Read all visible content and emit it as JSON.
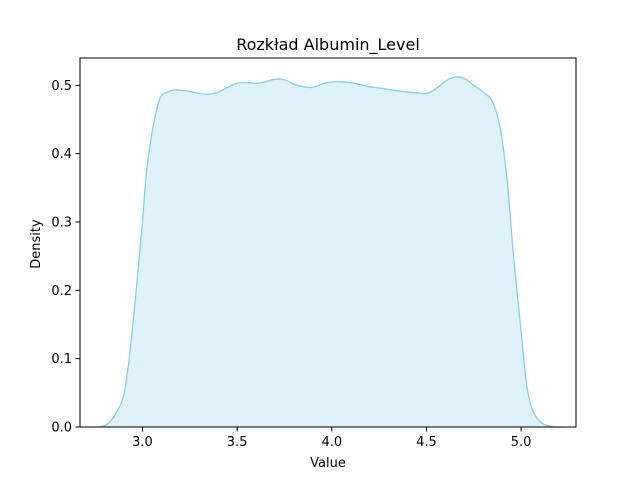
{
  "chart_data": {
    "type": "area",
    "title": "Rozkład Albumin_Level",
    "xlabel": "Value",
    "ylabel": "Density",
    "xlim": [
      2.67,
      5.29
    ],
    "ylim": [
      0,
      0.54
    ],
    "xticks": [
      3.0,
      3.5,
      4.0,
      4.5,
      5.0
    ],
    "xtick_labels": [
      "3.0",
      "3.5",
      "4.0",
      "4.5",
      "5.0"
    ],
    "yticks": [
      0.0,
      0.1,
      0.2,
      0.3,
      0.4,
      0.5
    ],
    "ytick_labels": [
      "0.0",
      "0.1",
      "0.2",
      "0.3",
      "0.4",
      "0.5"
    ],
    "grid": false,
    "legend": null,
    "colors": {
      "line": "#87ceeb",
      "fill": "#87ceeb",
      "fill_opacity": 0.27
    },
    "series": [
      {
        "x": [
          2.77,
          2.8,
          2.83,
          2.86,
          2.9,
          2.93,
          2.96,
          3.0,
          3.02,
          3.05,
          3.08,
          3.1,
          3.13,
          3.16,
          3.2,
          3.25,
          3.3,
          3.35,
          3.4,
          3.45,
          3.5,
          3.55,
          3.6,
          3.65,
          3.7,
          3.75,
          3.8,
          3.85,
          3.9,
          3.95,
          4.0,
          4.05,
          4.1,
          4.15,
          4.2,
          4.25,
          4.3,
          4.35,
          4.4,
          4.45,
          4.5,
          4.55,
          4.6,
          4.65,
          4.7,
          4.75,
          4.8,
          4.84,
          4.87,
          4.9,
          4.93,
          4.96,
          5.0,
          5.03,
          5.06,
          5.1,
          5.14,
          5.18,
          5.22
        ],
        "y": [
          0.0,
          0.002,
          0.008,
          0.02,
          0.045,
          0.1,
          0.18,
          0.3,
          0.37,
          0.43,
          0.47,
          0.485,
          0.49,
          0.493,
          0.493,
          0.491,
          0.488,
          0.487,
          0.49,
          0.497,
          0.503,
          0.504,
          0.503,
          0.505,
          0.509,
          0.508,
          0.502,
          0.498,
          0.497,
          0.502,
          0.505,
          0.505,
          0.504,
          0.501,
          0.498,
          0.496,
          0.494,
          0.492,
          0.49,
          0.489,
          0.488,
          0.495,
          0.506,
          0.512,
          0.51,
          0.5,
          0.49,
          0.48,
          0.46,
          0.42,
          0.35,
          0.25,
          0.14,
          0.06,
          0.025,
          0.008,
          0.002,
          0.0,
          0.0
        ]
      }
    ]
  }
}
